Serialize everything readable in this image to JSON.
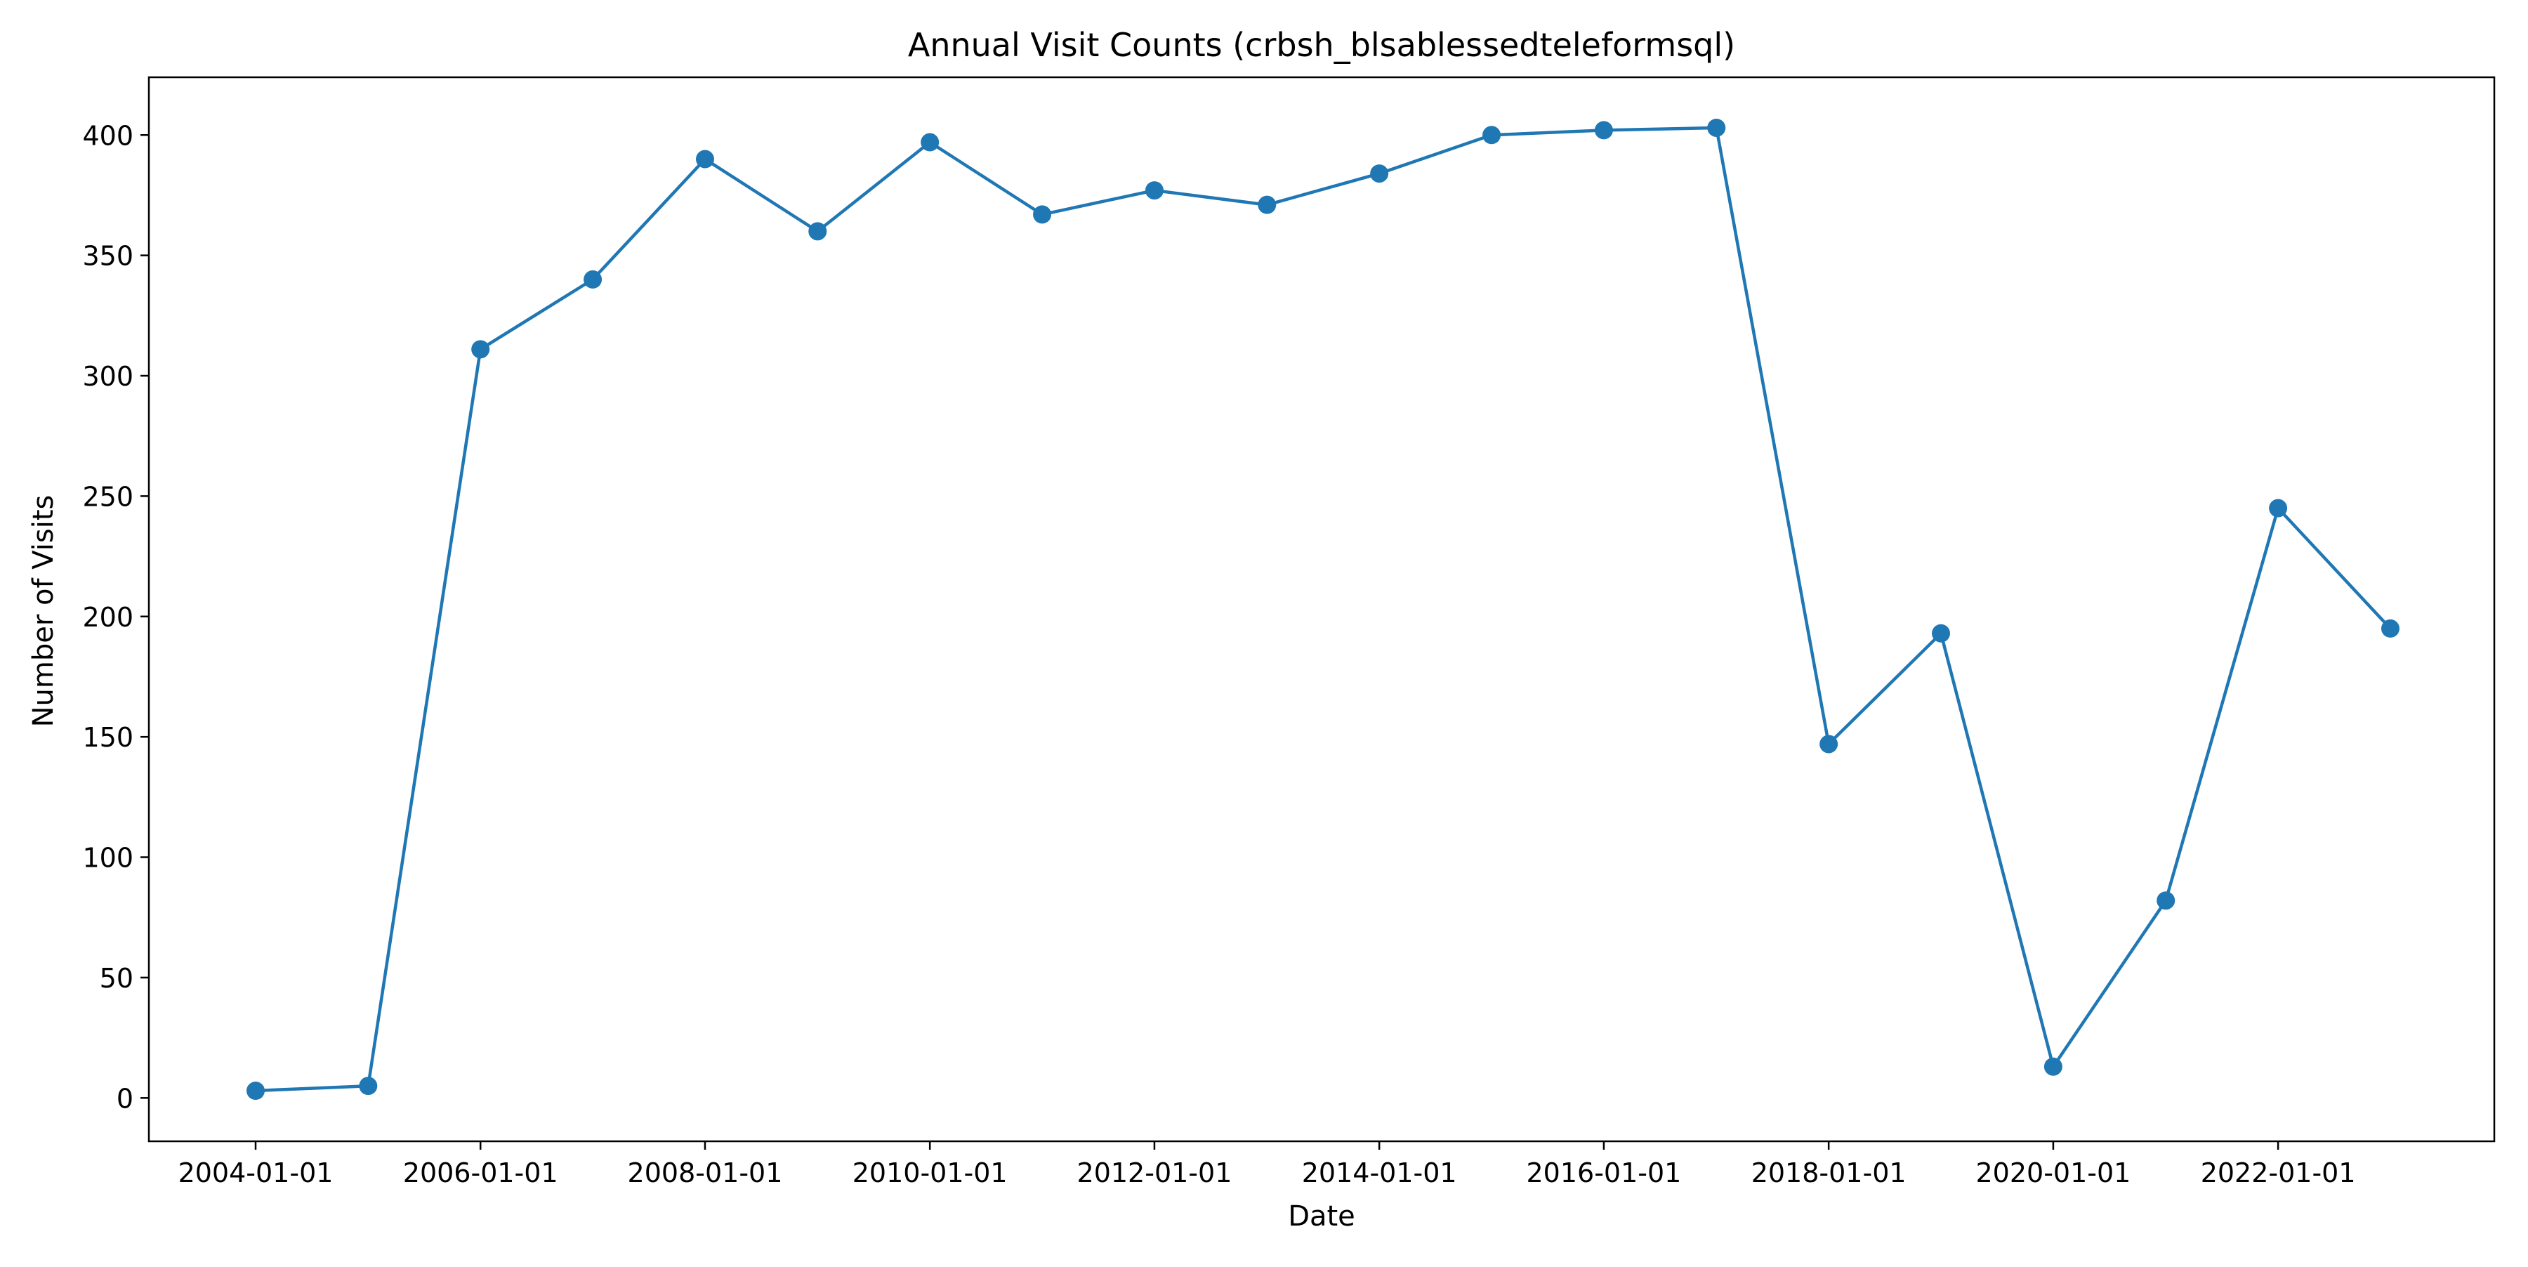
{
  "colors": {
    "series": "#1f77b4",
    "axis": "#000000",
    "background": "#ffffff"
  },
  "chart_data": {
    "type": "line",
    "title": "Annual Visit Counts (crbsh_blsablessedteleformsql)",
    "xlabel": "Date",
    "ylabel": "Number of Visits",
    "x": [
      "2004-01-01",
      "2005-01-01",
      "2006-01-01",
      "2007-01-01",
      "2008-01-01",
      "2009-01-01",
      "2010-01-01",
      "2011-01-01",
      "2012-01-01",
      "2013-01-01",
      "2014-01-01",
      "2015-01-01",
      "2016-01-01",
      "2017-01-01",
      "2018-01-01",
      "2019-01-01",
      "2020-01-01",
      "2021-01-01",
      "2022-01-01",
      "2023-01-01"
    ],
    "values": [
      3,
      5,
      311,
      340,
      390,
      360,
      397,
      367,
      377,
      371,
      384,
      400,
      402,
      403,
      147,
      193,
      13,
      82,
      245,
      195
    ],
    "x_ticks": [
      "2004-01-01",
      "2006-01-01",
      "2008-01-01",
      "2010-01-01",
      "2012-01-01",
      "2014-01-01",
      "2016-01-01",
      "2018-01-01",
      "2020-01-01",
      "2022-01-01"
    ],
    "y_ticks": [
      0,
      50,
      100,
      150,
      200,
      250,
      300,
      350,
      400
    ],
    "ylim": [
      -18,
      424
    ],
    "grid": false,
    "legend": "none",
    "marker": "circle"
  }
}
